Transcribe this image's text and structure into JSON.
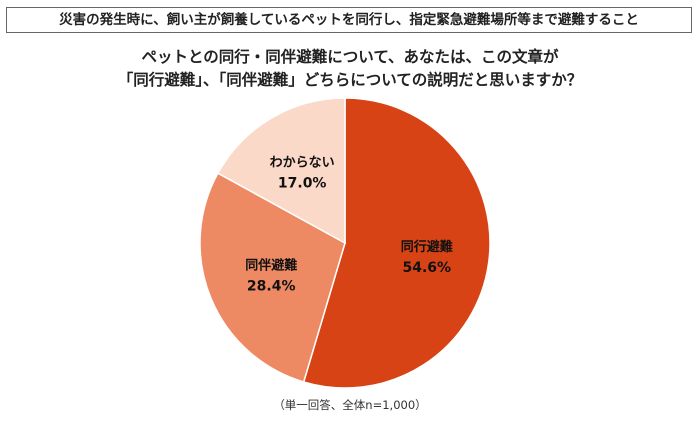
{
  "statement": "災害の発生時に、飼い主が飼養しているペットを同行し、指定緊急避難場所等まで避難すること",
  "question": {
    "line1": "ペットとの同行・同伴避難について、あなたは、この文章が",
    "line2": "「同行避難」、「同伴避難」どちらについての説明だと思いますか？"
  },
  "footnote": "（単一回答、全体n=1,000）",
  "chart_data": {
    "type": "pie",
    "categories": [
      "同行避難",
      "同伴避難",
      "わからない"
    ],
    "values": [
      54.6,
      28.4,
      17.0
    ],
    "labels": [
      "54.6%",
      "28.4%",
      "17.0%"
    ],
    "colors": [
      "#D84315",
      "#EE8A63",
      "#FAD9C8"
    ],
    "label_colors": [
      "#111111",
      "#111111",
      "#111111"
    ]
  }
}
